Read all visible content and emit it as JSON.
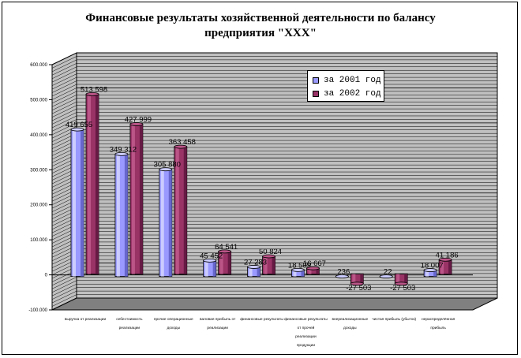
{
  "chart_data": {
    "type": "bar",
    "title_line1": "Финансовые результаты хозяйственной деятельности по балансу",
    "title_line2": "предприятия \"ХХХ\"",
    "categories": [
      "выручка от реализации",
      "себестоимость реализации",
      "прочие операционные доходы",
      "валовая прибыль от реализации",
      "финансовые результаты от реализации",
      "финансовые результаты от прочей реализации",
      "внереализационные доходы",
      "чистая прибыль (убыток)",
      "нераспределённая прибыль"
    ],
    "category_labels": [
      [
        "выручка от реализации"
      ],
      [
        "себестоимость",
        "реализации"
      ],
      [
        "прочие операционные",
        "доходы"
      ],
      [
        "валовая прибыль от",
        "реализации"
      ],
      [
        "финансовые результаты"
      ],
      [
        "финансовые результаты",
        "от прочей",
        "реализации",
        "продукции"
      ],
      [
        "внереализационные",
        "доходы"
      ],
      [
        "чистая прибыль (убыток)"
      ],
      [
        "нераспределённая",
        "прибыль"
      ]
    ],
    "series": [
      {
        "name": "за 2001 год",
        "color": "#9999ff",
        "values": [
          419655,
          349312,
          305880,
          45452,
          27283,
          18509,
          236,
          22,
          18007
        ],
        "labels": [
          "419 655",
          "349 312",
          "305 880",
          "45 452",
          "27 283",
          "18 509",
          "236",
          "22",
          "18 007"
        ]
      },
      {
        "name": "за 2002 год",
        "color": "#993366",
        "values": [
          513598,
          427999,
          363458,
          64541,
          50824,
          16667,
          -27503,
          -27503,
          41186
        ],
        "labels": [
          "513 598",
          "427 999",
          "363 458",
          "64 541",
          "50 824",
          "16 667",
          "-27 503",
          "-27 503",
          "41 186"
        ]
      }
    ],
    "ylim": [
      -100000,
      600000
    ],
    "yticks": [
      -100000,
      0,
      100000,
      200000,
      300000,
      400000,
      500000,
      600000
    ],
    "ytick_labels": [
      "-100.000",
      "0",
      "100.000",
      "200.000",
      "300.000",
      "400.000",
      "500.000",
      "600.000"
    ],
    "grid": true,
    "legend_position": "top-right"
  }
}
